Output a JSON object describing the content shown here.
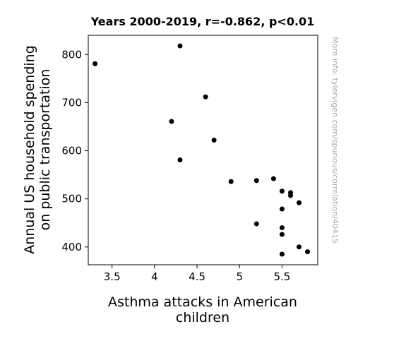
{
  "chart_data": {
    "type": "scatter",
    "title": "Years 2000-2019, r=-0.862, p<0.01",
    "xlabel_lines": [
      "Asthma attacks in American",
      "children"
    ],
    "ylabel_lines": [
      "Annual US household spending",
      "on public transportation"
    ],
    "watermark": "More info: tylervigen.com/spurious/correlation/40415",
    "xlim": [
      3.22,
      5.92
    ],
    "ylim": [
      363,
      840
    ],
    "xticks": [
      3.5,
      4,
      4.5,
      5,
      5.5
    ],
    "xtick_labels": [
      "3.5",
      "4",
      "4.5",
      "5",
      "5.5"
    ],
    "yticks": [
      400,
      500,
      600,
      700,
      800
    ],
    "ytick_labels": [
      "400",
      "500",
      "600",
      "700",
      "800"
    ],
    "points": [
      {
        "x": 3.3,
        "y": 781
      },
      {
        "x": 4.3,
        "y": 818
      },
      {
        "x": 4.6,
        "y": 712
      },
      {
        "x": 4.2,
        "y": 661
      },
      {
        "x": 4.7,
        "y": 622
      },
      {
        "x": 4.3,
        "y": 581
      },
      {
        "x": 4.9,
        "y": 536
      },
      {
        "x": 5.2,
        "y": 538
      },
      {
        "x": 5.4,
        "y": 542
      },
      {
        "x": 5.5,
        "y": 516
      },
      {
        "x": 5.6,
        "y": 513
      },
      {
        "x": 5.6,
        "y": 507
      },
      {
        "x": 5.7,
        "y": 492
      },
      {
        "x": 5.5,
        "y": 479
      },
      {
        "x": 5.2,
        "y": 448
      },
      {
        "x": 5.5,
        "y": 440
      },
      {
        "x": 5.5,
        "y": 426
      },
      {
        "x": 5.7,
        "y": 400
      },
      {
        "x": 5.8,
        "y": 390
      },
      {
        "x": 5.5,
        "y": 385
      }
    ],
    "marker_color": "#000000",
    "grid": false,
    "legend": "none"
  }
}
